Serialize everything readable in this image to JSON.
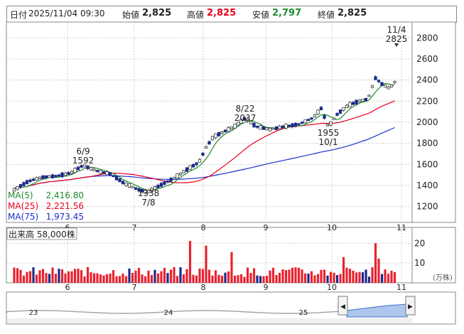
{
  "quote_bar": {
    "date_label": "日付",
    "datetime": "2025/11/04 09:30",
    "open_label": "始値",
    "open": "2,825",
    "high_label": "高値",
    "high": "2,825",
    "low_label": "安値",
    "low": "2,797",
    "close_label": "終値",
    "close": "2,825"
  },
  "colors": {
    "up": "#1a1a1a",
    "down": "#1a2a8c",
    "ma5": "#1e8c2c",
    "ma25": "#e8001c",
    "ma75": "#1b2fd0",
    "volume": "#e8232f",
    "volume_dark": "#1a2a8c",
    "grid": "#cccccc"
  },
  "chart_data": [
    {
      "type": "candlestick",
      "ylim": [
        1050,
        2950
      ],
      "y_ticks": [
        "1200",
        "1400",
        "1600",
        "1800",
        "2000",
        "2200",
        "2400",
        "2600",
        "2800"
      ],
      "x_ticks": [
        "6",
        "7",
        "8",
        "9",
        "10",
        "11"
      ],
      "legend": [
        {
          "name": "MA(5)",
          "value": "2,416.80"
        },
        {
          "name": "MA(25)",
          "value": "2,221.56"
        },
        {
          "name": "MA(75)",
          "value": "1,973.45"
        }
      ],
      "annotations": {
        "max_left": {
          "date": "6/9",
          "value": "1592"
        },
        "min": {
          "value": "1338",
          "date": "7/8"
        },
        "peak_aug": {
          "date": "8/22",
          "value": "2037"
        },
        "low_oct": {
          "value": "1955",
          "date": "10/1"
        },
        "last": {
          "date": "11/4",
          "value": "2825"
        }
      },
      "series": [
        {
          "name": "MA(5)",
          "start": 1380,
          "end": 2417
        },
        {
          "name": "MA(25)",
          "start": 1370,
          "end": 2222
        },
        {
          "name": "MA(75)",
          "start": 1340,
          "end": 1973
        }
      ]
    },
    {
      "type": "bar",
      "title": "出来高",
      "title_value": "58,000株",
      "ylim": [
        0,
        28
      ],
      "y_ticks": [
        "10",
        "20"
      ],
      "unit": "(万株)",
      "x_ticks": [
        "6",
        "7",
        "8",
        "9",
        "10",
        "11"
      ]
    },
    {
      "type": "area",
      "x_ticks": [
        "23",
        "24",
        "25"
      ]
    }
  ]
}
